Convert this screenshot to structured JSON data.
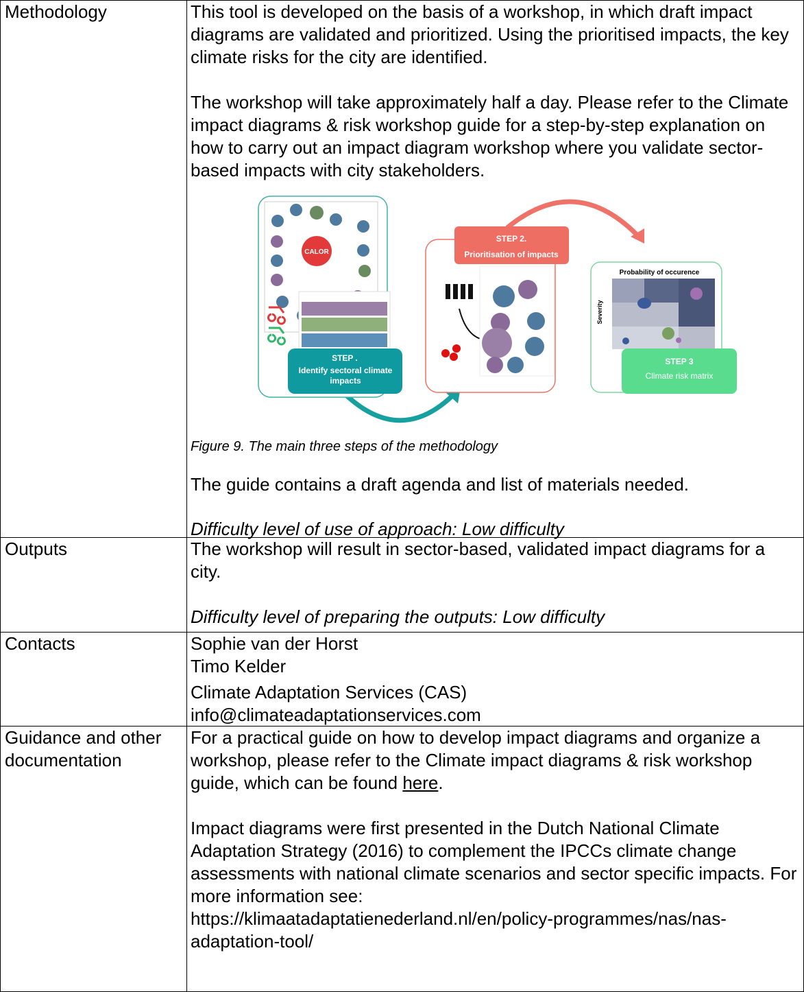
{
  "rows": [
    {
      "label": "Methodology",
      "paragraphs": [
        "This tool is developed on the basis of a workshop, in which draft impact diagrams are validated and prioritized. Using the prioritised impacts, the key climate risks for the city are identified.",
        "The workshop will take approximately half a day. Please refer to the Climate impact diagrams & risk workshop guide for a step-by-step explanation on how to carry out an impact diagram workshop where you validate sector-based impacts with city stakeholders."
      ],
      "figure": {
        "center": "CALOR",
        "step1": "STEP .",
        "step1_text": "Identify sectoral climate impacts",
        "step2": "STEP 2.",
        "step2_text": "Prioritisation of impacts",
        "matrix_title": "Probability of occurence",
        "matrix_axis": "Severity",
        "step3": "STEP 3",
        "step3_text": "Climate risk matrix"
      },
      "caption": "Figure 9. The main three steps of the methodology",
      "note": "The guide contains a draft agenda and list of materials needed.",
      "difficulty": "Difficulty level of use of approach: Low difficulty"
    },
    {
      "label": "Outputs",
      "text": "The workshop will result in sector-based, validated impact diagrams for a city.",
      "difficulty": "Difficulty level of preparing the outputs: Low difficulty"
    },
    {
      "label": "Contacts",
      "people": [
        "Sophie van der Horst",
        "Timo Kelder"
      ],
      "organization": "Climate Adaptation Services (CAS)",
      "email": "info@climateadaptationservices.com"
    },
    {
      "label": "Guidance and other documentation",
      "guide_text": "For a practical guide on how to develop impact diagrams and organize a workshop, please refer to the Climate impact diagrams & risk workshop guide, which can be found ",
      "guide_link": "here",
      "guide_end": ".",
      "history": "Impact diagrams were first presented in the Dutch National Climate Adaptation Strategy (2016) to complement the IPCCs climate change assessments with national climate scenarios and sector specific impacts. For more information see:",
      "url": "https://klimaatadaptatienederland.nl/en/policy-programmes/nas/nas-adaptation-tool/"
    }
  ]
}
